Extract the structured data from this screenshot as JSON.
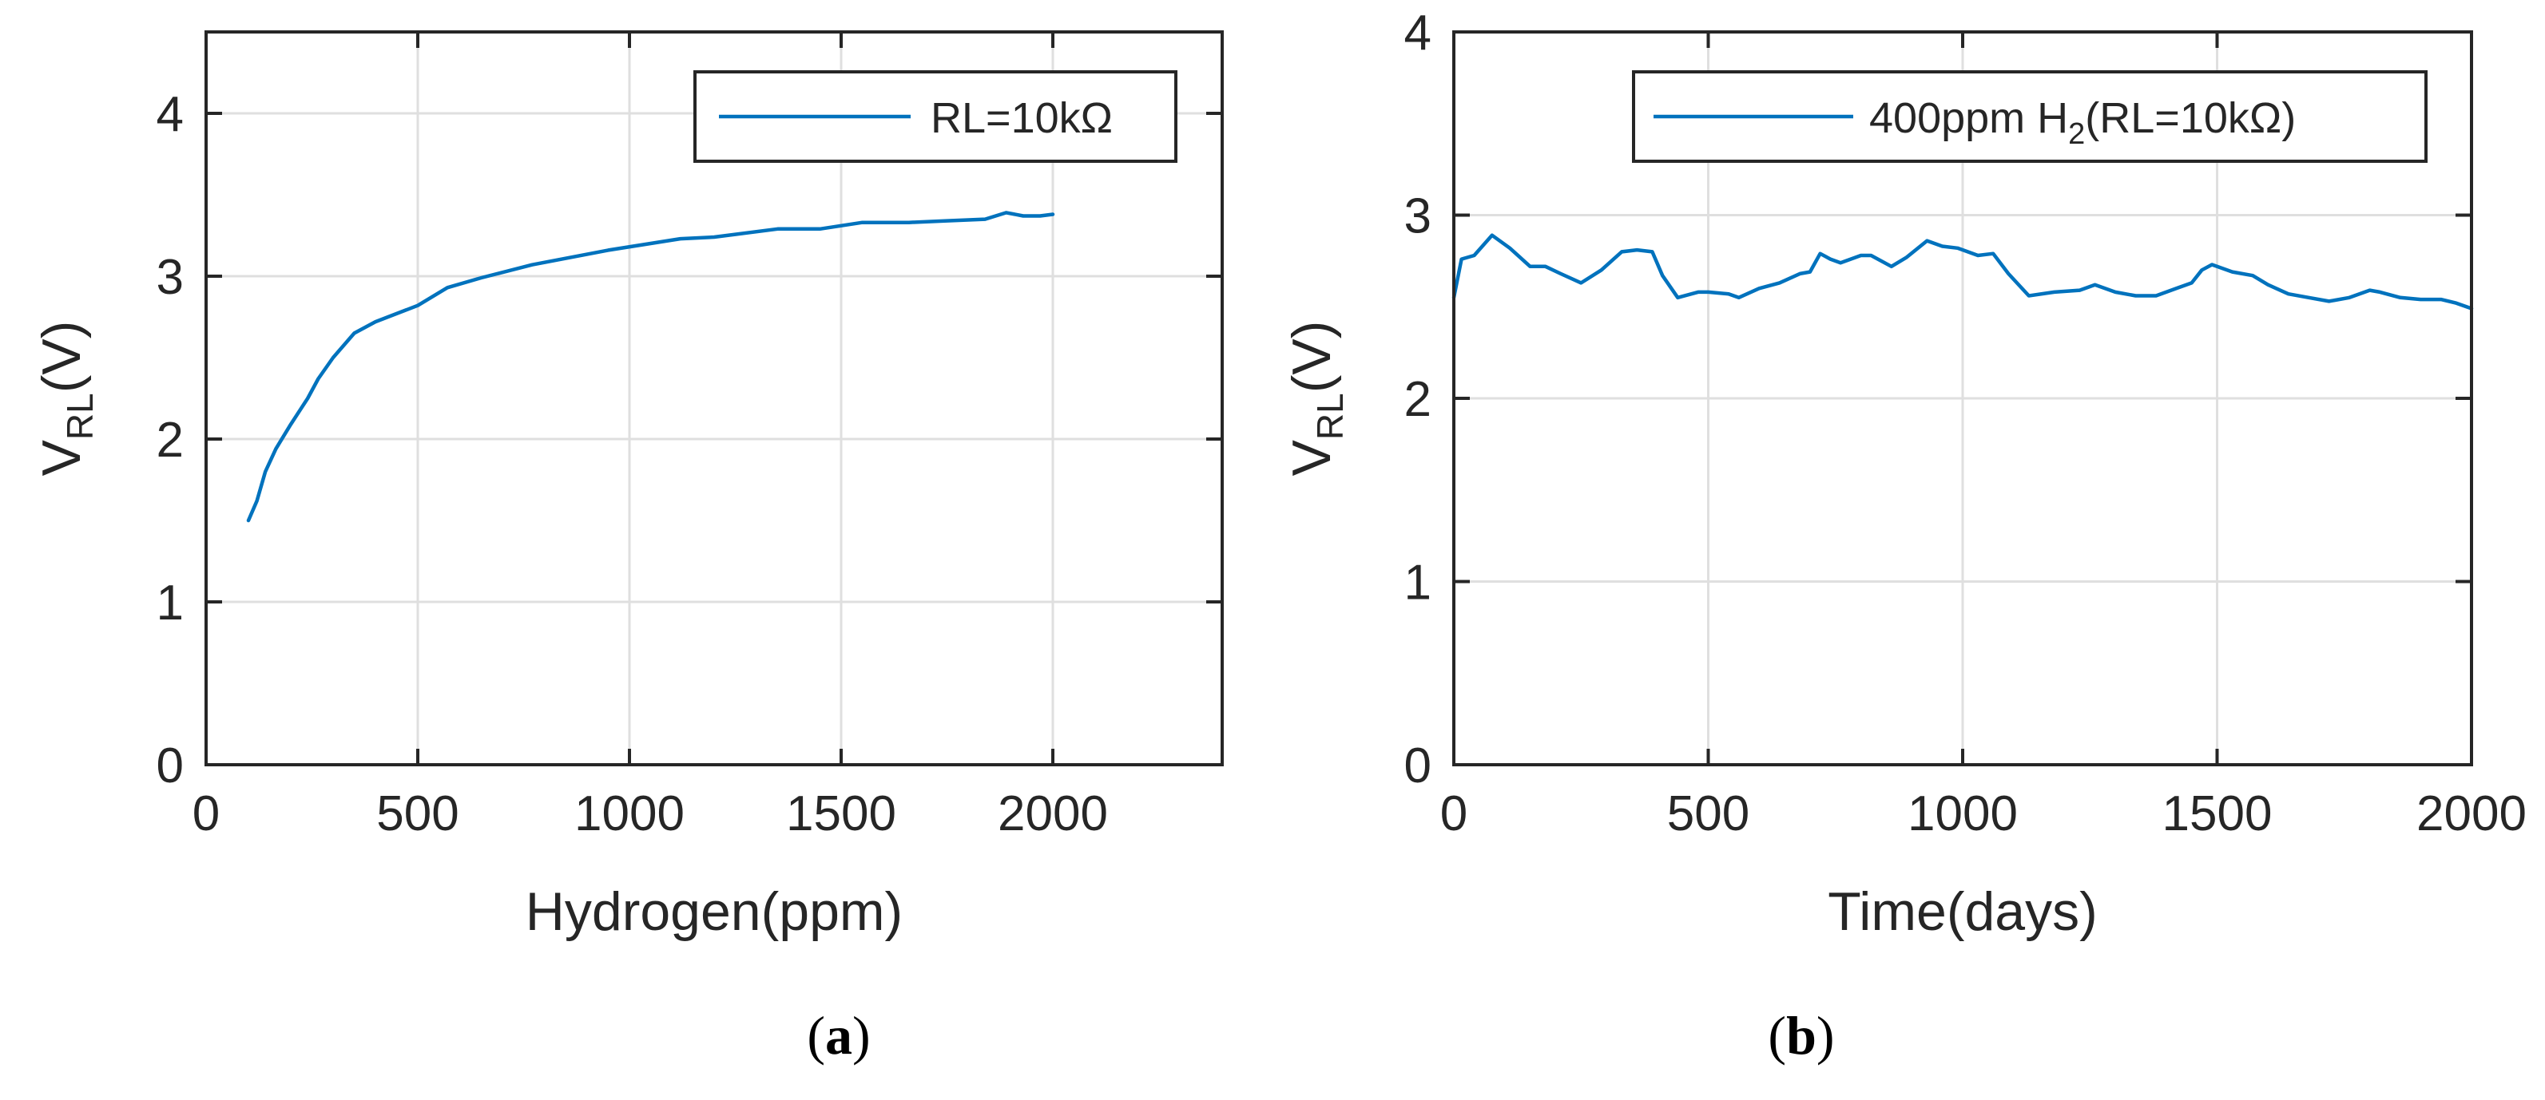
{
  "colors": {
    "series": "#0072BD",
    "axis": "#262626",
    "grid": "#dfdfdf"
  },
  "chart_data": [
    {
      "type": "line",
      "caption": {
        "open": "(",
        "letter": "a",
        "close": ")"
      },
      "xlabel": "Hydrogen(ppm)",
      "ylabel": {
        "main": "V",
        "sub": "RL",
        "suffix": "(V)"
      },
      "xlim": [
        0,
        2400
      ],
      "ylim": [
        0,
        4.5
      ],
      "xticks": [
        0,
        500,
        1000,
        1500,
        2000
      ],
      "xtick_labels": [
        "0",
        "500",
        "1000",
        "1500",
        "2000"
      ],
      "yticks": [
        0,
        1,
        2,
        3,
        4
      ],
      "ytick_labels": [
        "0",
        "1",
        "2",
        "3",
        "4"
      ],
      "grid": true,
      "legend": {
        "position": "top-right",
        "label": "RL=10kΩ",
        "sub": "",
        "suffix": ""
      },
      "series": [
        {
          "name": "RL=10kΩ",
          "x": [
            100,
            120,
            140,
            165,
            200,
            240,
            265,
            300,
            350,
            400,
            450,
            500,
            570,
            650,
            770,
            950,
            1120,
            1200,
            1350,
            1450,
            1550,
            1660,
            1750,
            1840,
            1890,
            1930,
            1970,
            2000
          ],
          "y": [
            1.5,
            1.62,
            1.8,
            1.94,
            2.09,
            2.25,
            2.37,
            2.5,
            2.65,
            2.72,
            2.77,
            2.82,
            2.93,
            2.99,
            3.07,
            3.16,
            3.23,
            3.24,
            3.29,
            3.29,
            3.33,
            3.33,
            3.34,
            3.35,
            3.39,
            3.37,
            3.37,
            3.38
          ]
        }
      ]
    },
    {
      "type": "line",
      "caption": {
        "open": "(",
        "letter": "b",
        "close": ")"
      },
      "xlabel": "Time(days)",
      "ylabel": {
        "main": "V",
        "sub": "RL",
        "suffix": "(V)"
      },
      "xlim": [
        0,
        2000
      ],
      "ylim": [
        0,
        4
      ],
      "xticks": [
        0,
        500,
        1000,
        1500,
        2000
      ],
      "xtick_labels": [
        "0",
        "500",
        "1000",
        "1500",
        "2000"
      ],
      "yticks": [
        0,
        1,
        2,
        3,
        4
      ],
      "ytick_labels": [
        "0",
        "1",
        "2",
        "3",
        "4"
      ],
      "grid": true,
      "legend": {
        "position": "top-right",
        "label": "400ppm H",
        "sub": "2",
        "suffix": "(RL=10kΩ)"
      },
      "series": [
        {
          "name": "400ppm H2(RL=10kΩ)",
          "x": [
            0,
            15,
            40,
            75,
            110,
            150,
            180,
            210,
            250,
            290,
            330,
            360,
            390,
            410,
            440,
            480,
            500,
            540,
            560,
            600,
            640,
            680,
            700,
            720,
            740,
            760,
            800,
            820,
            860,
            890,
            930,
            960,
            990,
            1030,
            1060,
            1090,
            1130,
            1180,
            1230,
            1260,
            1300,
            1340,
            1380,
            1420,
            1450,
            1470,
            1490,
            1530,
            1570,
            1600,
            1640,
            1680,
            1720,
            1760,
            1800,
            1820,
            1860,
            1900,
            1940,
            1970,
            2000
          ],
          "y": [
            2.55,
            2.76,
            2.78,
            2.89,
            2.82,
            2.72,
            2.72,
            2.68,
            2.63,
            2.7,
            2.8,
            2.81,
            2.8,
            2.67,
            2.55,
            2.58,
            2.58,
            2.57,
            2.55,
            2.6,
            2.63,
            2.68,
            2.69,
            2.79,
            2.76,
            2.74,
            2.78,
            2.78,
            2.72,
            2.77,
            2.86,
            2.83,
            2.82,
            2.78,
            2.79,
            2.68,
            2.56,
            2.58,
            2.59,
            2.62,
            2.58,
            2.56,
            2.56,
            2.6,
            2.63,
            2.7,
            2.73,
            2.69,
            2.67,
            2.62,
            2.57,
            2.55,
            2.53,
            2.55,
            2.59,
            2.58,
            2.55,
            2.54,
            2.54,
            2.52,
            2.49
          ]
        }
      ]
    }
  ]
}
